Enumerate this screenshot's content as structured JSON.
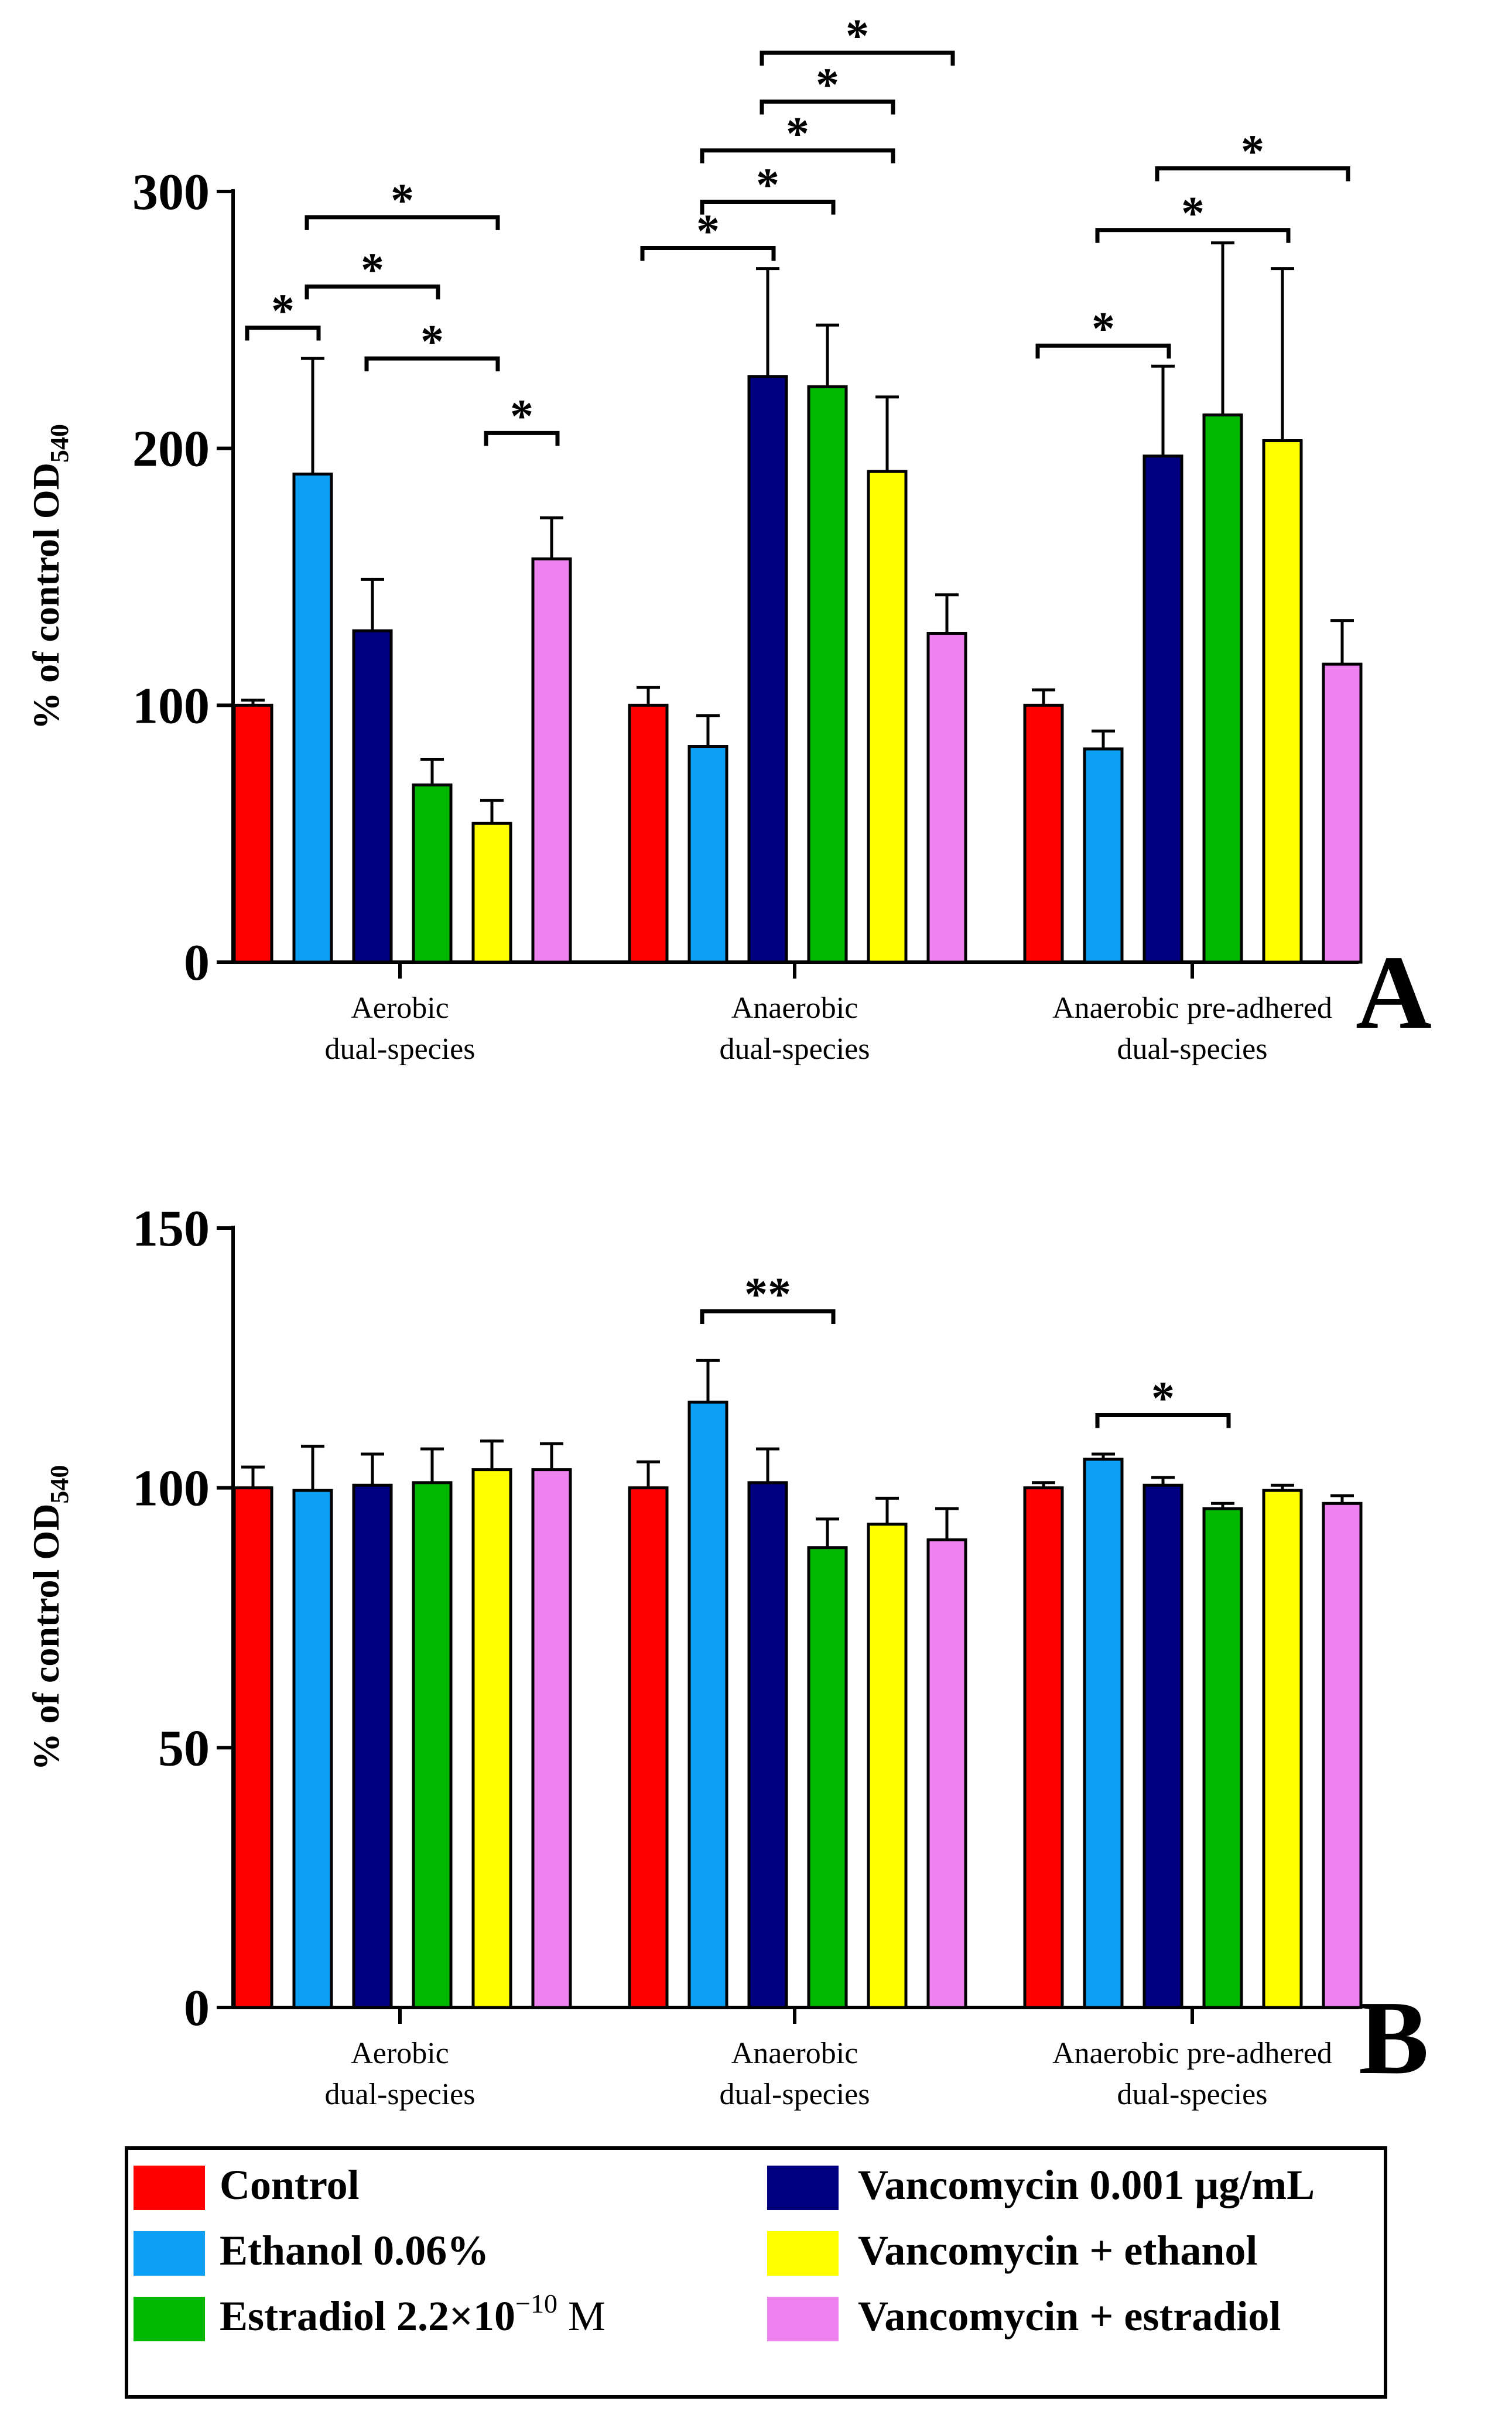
{
  "chart_data": [
    {
      "panel": "A",
      "type": "bar",
      "ylabel_main": "% of control OD",
      "ylabel_sub": "540",
      "ylim": [
        0,
        300
      ],
      "yticks": [
        0,
        100,
        200,
        300
      ],
      "groups": [
        "Aerobic|dual-species",
        "Anaerobic|dual-species",
        "Anaerobic pre-adhered|dual-species"
      ],
      "series": [
        {
          "key": "control",
          "name": "Control",
          "color": "#ff0000",
          "values": [
            100,
            100,
            100
          ],
          "errors": [
            2,
            7,
            6
          ]
        },
        {
          "key": "ethanol",
          "name": "Ethanol 0.06%",
          "color": "#0ba0f5",
          "values": [
            190,
            84,
            83
          ],
          "errors": [
            45,
            12,
            7
          ]
        },
        {
          "key": "vanco",
          "name": "Vancomycin 0.001 µg/mL",
          "color": "#000080",
          "values": [
            129,
            228,
            197
          ],
          "errors": [
            20,
            42,
            35
          ]
        },
        {
          "key": "estradiol",
          "name": "Estradiol 2.2×10⁻¹⁰ M",
          "color": "#00b800",
          "values": [
            69,
            224,
            213
          ],
          "errors": [
            10,
            24,
            67
          ]
        },
        {
          "key": "vanco_eth",
          "name": "Vancomycin + ethanol",
          "color": "#ffff00",
          "values": [
            54,
            191,
            203
          ],
          "errors": [
            9,
            29,
            67
          ]
        },
        {
          "key": "vanco_est",
          "name": "Vancomycin + estradiol",
          "color": "#ee82ee",
          "values": [
            157,
            128,
            116
          ],
          "errors": [
            16,
            15,
            17
          ]
        }
      ],
      "significance": [
        {
          "group": 0,
          "from": 0,
          "to": 1,
          "y": 247,
          "label": "*"
        },
        {
          "group": 0,
          "from": 1,
          "to": 3,
          "y": 263,
          "label": "*"
        },
        {
          "group": 0,
          "from": 1,
          "to": 4,
          "y": 290,
          "label": "*"
        },
        {
          "group": 0,
          "from": 2,
          "to": 4,
          "y": 235,
          "label": "*"
        },
        {
          "group": 0,
          "from": 4,
          "to": 5,
          "y": 206,
          "label": "*"
        },
        {
          "group": 1,
          "from": 0,
          "to": 2,
          "y": 278,
          "label": "*"
        },
        {
          "group": 1,
          "from": 1,
          "to": 3,
          "y": 296,
          "label": "*"
        },
        {
          "group": 1,
          "from": 1,
          "to": 4,
          "y": 316,
          "label": "*"
        },
        {
          "group": 1,
          "from": 2,
          "to": 4,
          "y": 335,
          "label": "*"
        },
        {
          "group": 1,
          "from": 2,
          "to": 5,
          "y": 354,
          "label": "*"
        },
        {
          "group": 2,
          "from": 0,
          "to": 2,
          "y": 240,
          "label": "*"
        },
        {
          "group": 2,
          "from": 1,
          "to": 4,
          "y": 285,
          "label": "*"
        },
        {
          "group": 2,
          "from": 2,
          "to": 5,
          "y": 309,
          "label": "*"
        }
      ],
      "panel_label": "A"
    },
    {
      "panel": "B",
      "type": "bar",
      "ylabel_main": "% of control OD",
      "ylabel_sub": "540",
      "ylim": [
        0,
        150
      ],
      "yticks": [
        0,
        50,
        100,
        150
      ],
      "groups": [
        "Aerobic|dual-species",
        "Anaerobic|dual-species",
        "Anaerobic pre-adhered|dual-species"
      ],
      "series": [
        {
          "key": "control",
          "name": "Control",
          "color": "#ff0000",
          "values": [
            100,
            100,
            100
          ],
          "errors": [
            4,
            5,
            1
          ]
        },
        {
          "key": "ethanol",
          "name": "Ethanol 0.06%",
          "color": "#0ba0f5",
          "values": [
            99.5,
            116.5,
            105.5
          ],
          "errors": [
            8.5,
            8,
            1
          ]
        },
        {
          "key": "vanco",
          "name": "Vancomycin 0.001 µg/mL",
          "color": "#000080",
          "values": [
            100.5,
            101,
            100.5
          ],
          "errors": [
            6,
            6.5,
            1.5
          ]
        },
        {
          "key": "estradiol",
          "name": "Estradiol 2.2×10⁻¹⁰ M",
          "color": "#00b800",
          "values": [
            101,
            88.5,
            96
          ],
          "errors": [
            6.5,
            5.5,
            1
          ]
        },
        {
          "key": "vanco_eth",
          "name": "Vancomycin + ethanol",
          "color": "#ffff00",
          "values": [
            103.5,
            93,
            99.5
          ],
          "errors": [
            5.5,
            5,
            1
          ]
        },
        {
          "key": "vanco_est",
          "name": "Vancomycin + estradiol",
          "color": "#ee82ee",
          "values": [
            103.5,
            90,
            97
          ],
          "errors": [
            5,
            6,
            1.5
          ]
        }
      ],
      "significance": [
        {
          "group": 1,
          "from": 1,
          "to": 3,
          "y": 134,
          "label": "**"
        },
        {
          "group": 2,
          "from": 1,
          "to": 3,
          "y": 114,
          "label": "*"
        }
      ],
      "panel_label": "B"
    }
  ],
  "legend": {
    "items": [
      {
        "key": "control",
        "label": "Control",
        "color": "#ff0000"
      },
      {
        "key": "ethanol",
        "label": "Ethanol 0.06%",
        "color": "#0ba0f5"
      },
      {
        "key": "estradiol",
        "label": "Estradiol 2.2×10",
        "sup": "−10",
        "tail": " M",
        "color": "#00b800"
      },
      {
        "key": "vanco",
        "label": "Vancomycin 0.001 μg/mL",
        "color": "#000080"
      },
      {
        "key": "vanco_eth",
        "label": "Vancomycin + ethanol",
        "color": "#ffff00"
      },
      {
        "key": "vanco_est",
        "label": "Vancomycin + estradiol",
        "color": "#ee82ee"
      }
    ]
  }
}
